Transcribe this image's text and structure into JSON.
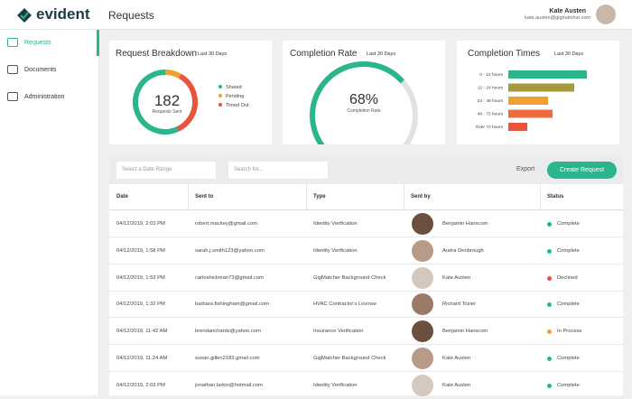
{
  "header": {
    "logo": "evident",
    "page_title": "Requests",
    "user_name": "Kate Austen",
    "user_email": "kate.austen@gigmatcher.com"
  },
  "nav": [
    "Requests",
    "Documents",
    "Administration"
  ],
  "cards": {
    "breakdown": {
      "title": "Request Breakdown",
      "period": "Last 30 Days",
      "total": "182",
      "total_label": "Requests Sent",
      "chart_data": {
        "type": "donut",
        "categories": [
          "Shared",
          "Pending",
          "Timed Out"
        ],
        "values": [
          104,
          15,
          63
        ],
        "colors": [
          "#2bb58c",
          "#f0a030",
          "#e8553f"
        ]
      }
    },
    "rate": {
      "title": "Completion Rate",
      "period": "Last 30 Days",
      "caption": "Completion Rate",
      "chart_data": {
        "type": "gauge",
        "values": [
          68
        ],
        "value_labels": [
          "68%"
        ],
        "ylim": [
          0,
          100
        ],
        "color": "#2bb58c",
        "track_color": "#e0e2e4"
      }
    },
    "times": {
      "title": "Completion Times",
      "period": "Last 30 Days",
      "chart_data": {
        "type": "bar",
        "categories": [
          "0 - 12 hours",
          "12 - 24 hours",
          "24 - 48 hours",
          "48 - 72 hours",
          "Over 72 hours"
        ],
        "values": [
          87,
          73,
          44,
          49,
          21
        ],
        "xlim": [
          0,
          100
        ],
        "colors": [
          "#2bb58c",
          "#a69a3c",
          "#f0a030",
          "#ee6b3b",
          "#e8553f"
        ]
      }
    }
  },
  "toolbar": {
    "date_placeholder": "Select a Date Range",
    "search_placeholder": "Search for...",
    "export": "Export",
    "create": "Create Request"
  },
  "table": {
    "columns": [
      "Date",
      "Sent to",
      "Type",
      "Sent by",
      "Status"
    ],
    "rows": [
      [
        "04/12/2019, 2:03 PM",
        "robert.mackey@gmail.com",
        "Identity Verification",
        "Benjamin Hanscom",
        "Complete"
      ],
      [
        "04/12/2019, 1:58 PM",
        "sarah.j.smith123@yahoo.com",
        "Identity Verification",
        "Audra Denbrough",
        "Complete"
      ],
      [
        "04/12/2019, 1:53 PM",
        "carloshickman73@gmail.com",
        "GigMatcher Background Check",
        "Kate Austen",
        "Declined"
      ],
      [
        "04/12/2019, 1:32 PM",
        "barbara.fishingham@gmail.com",
        "HVAC Contractor's License",
        "Richard Tozier",
        "Complete"
      ],
      [
        "04/12/2019, 11:42 AM",
        "brendarichards@yahoo.com",
        "Insurance Verification",
        "Benjamin Hanscom",
        "In Process"
      ],
      [
        "04/12/2019, 11:24 AM",
        "susan.gillen2183.gmail.com",
        "GigMatcher Background Check",
        "Kate Austen",
        "Complete"
      ],
      [
        "04/12/2019, 2:03 PM",
        "jonathan.larkin@hotmail.com",
        "Identity Verification",
        "Kate Austen",
        "Complete"
      ]
    ],
    "status_colors": [
      "#2bb58c",
      "#2bb58c",
      "#e8553f",
      "#2bb58c",
      "#f0a030",
      "#2bb58c",
      "#2bb58c"
    ]
  }
}
